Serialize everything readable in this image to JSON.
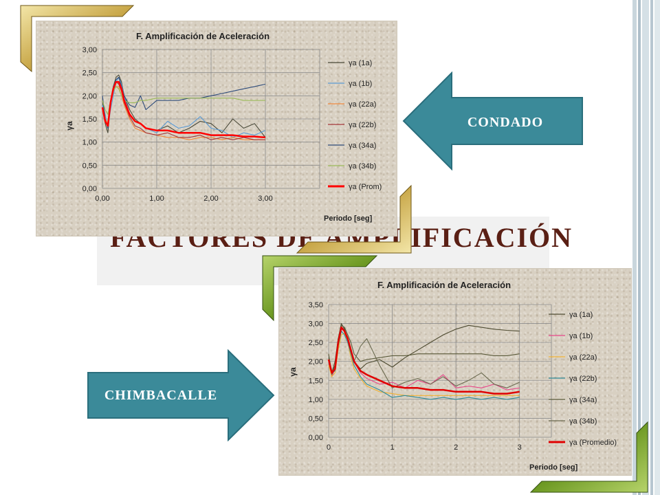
{
  "slide": {
    "title": "FACTORES DE AMPLIFICACIÓN"
  },
  "arrows": {
    "top_label": "CONDADO",
    "bottom_label": "CHIMBACALLE"
  },
  "charts": [
    {
      "title": "F. Amplificación de Aceleración",
      "ylabel": "γa",
      "xlabel": "Periodo [seg]",
      "xticks": [
        "0,00",
        "1,00",
        "2,00",
        "3,00"
      ],
      "yticks": [
        "0,00",
        "0,50",
        "1,00",
        "1,50",
        "2,00",
        "2,50",
        "3,00"
      ],
      "legend": [
        "γa  (1a)",
        "γa (1b)",
        "γa (22a)",
        "γa (22b)",
        "γa (34a)",
        "γa (34b)",
        "γa (Prom)"
      ]
    },
    {
      "title": "F.  Amplificación de Aceleración",
      "ylabel": "γa",
      "xlabel": "Periodo [seg]",
      "xticks": [
        "0",
        "1",
        "2",
        "3"
      ],
      "yticks": [
        "0,00",
        "0,50",
        "1,00",
        "1,50",
        "2,00",
        "2,50",
        "3,00",
        "3,50"
      ],
      "legend": [
        "γa (1a)",
        "γa (1b)",
        "γa (22a)",
        "γa (22b)",
        "γa (34a)",
        "γa (34b)",
        "γa (Promedio)"
      ]
    }
  ],
  "chart_data": [
    {
      "type": "line",
      "title": "F. Amplificación de Aceleración",
      "xlabel": "Periodo [seg]",
      "ylabel": "γa",
      "xlim": [
        0,
        4
      ],
      "ylim": [
        0,
        3
      ],
      "grid": true,
      "legend_position": "right",
      "series": [
        {
          "name": "γa  (1a)",
          "color": "#4a4a3a",
          "x": [
            0,
            0.05,
            0.1,
            0.15,
            0.2,
            0.25,
            0.3,
            0.35,
            0.4,
            0.5,
            0.6,
            0.7,
            0.8,
            1.0,
            1.2,
            1.4,
            1.6,
            1.8,
            2.0,
            2.2,
            2.4,
            2.6,
            2.8,
            3.0
          ],
          "y": [
            1.9,
            1.4,
            1.2,
            1.8,
            2.2,
            2.4,
            2.45,
            2.3,
            2.0,
            1.7,
            1.5,
            1.4,
            1.3,
            1.25,
            1.35,
            1.2,
            1.3,
            1.45,
            1.4,
            1.2,
            1.5,
            1.3,
            1.4,
            1.1
          ]
        },
        {
          "name": "γa (1b)",
          "color": "#5b9bd5",
          "x": [
            0,
            0.05,
            0.1,
            0.15,
            0.2,
            0.25,
            0.3,
            0.35,
            0.4,
            0.5,
            0.6,
            0.7,
            0.8,
            1.0,
            1.2,
            1.4,
            1.6,
            1.8,
            2.0,
            2.2,
            2.4,
            2.6,
            2.8,
            3.0
          ],
          "y": [
            1.8,
            1.6,
            1.3,
            1.7,
            2.0,
            2.3,
            2.4,
            2.25,
            2.0,
            1.6,
            1.45,
            1.4,
            1.3,
            1.2,
            1.45,
            1.3,
            1.35,
            1.55,
            1.3,
            1.25,
            1.1,
            1.2,
            1.15,
            1.25
          ]
        },
        {
          "name": "γa (22a)",
          "color": "#f0883c",
          "x": [
            0,
            0.05,
            0.1,
            0.15,
            0.2,
            0.25,
            0.3,
            0.35,
            0.4,
            0.5,
            0.6,
            0.7,
            0.8,
            1.0,
            1.2,
            1.4,
            1.6,
            1.8,
            2.0,
            2.2,
            2.4,
            2.6,
            2.8,
            3.0
          ],
          "y": [
            1.7,
            1.5,
            1.4,
            1.9,
            2.1,
            2.2,
            2.2,
            2.0,
            1.8,
            1.5,
            1.3,
            1.25,
            1.2,
            1.15,
            1.1,
            1.1,
            1.05,
            1.1,
            1.1,
            1.05,
            1.1,
            1.05,
            1.05,
            1.05
          ]
        },
        {
          "name": "γa (22b)",
          "color": "#a4373a",
          "x": [
            0,
            0.05,
            0.1,
            0.15,
            0.2,
            0.25,
            0.3,
            0.35,
            0.4,
            0.5,
            0.6,
            0.7,
            0.8,
            1.0,
            1.2,
            1.4,
            1.6,
            1.8,
            2.0,
            2.2,
            2.4,
            2.6,
            2.8,
            3.0
          ],
          "y": [
            1.75,
            1.45,
            1.35,
            1.85,
            2.15,
            2.3,
            2.25,
            2.1,
            1.85,
            1.55,
            1.35,
            1.3,
            1.2,
            1.15,
            1.2,
            1.1,
            1.1,
            1.15,
            1.05,
            1.1,
            1.05,
            1.1,
            1.05,
            1.05
          ]
        },
        {
          "name": "γa (34a)",
          "color": "#2c4a7a",
          "x": [
            0,
            0.05,
            0.1,
            0.15,
            0.2,
            0.25,
            0.3,
            0.35,
            0.4,
            0.5,
            0.6,
            0.7,
            0.8,
            1.0,
            1.2,
            1.4,
            1.6,
            1.8,
            2.0,
            2.2,
            2.4,
            2.6,
            2.8,
            3.0
          ],
          "y": [
            2.0,
            1.5,
            1.3,
            1.9,
            2.2,
            2.35,
            2.4,
            2.2,
            2.0,
            1.8,
            1.75,
            2.0,
            1.7,
            1.9,
            1.9,
            1.9,
            1.95,
            1.95,
            2.0,
            2.05,
            2.1,
            2.15,
            2.2,
            2.25
          ]
        },
        {
          "name": "γa (34b)",
          "color": "#9bbb59",
          "x": [
            0,
            0.05,
            0.1,
            0.15,
            0.2,
            0.25,
            0.3,
            0.35,
            0.4,
            0.5,
            0.6,
            0.7,
            0.8,
            1.0,
            1.2,
            1.4,
            1.6,
            1.8,
            2.0,
            2.2,
            2.4,
            2.6,
            2.8,
            3.0
          ],
          "y": [
            1.9,
            1.7,
            1.6,
            1.9,
            2.1,
            2.2,
            2.15,
            2.0,
            1.9,
            1.85,
            1.85,
            1.9,
            1.9,
            1.95,
            1.95,
            1.95,
            1.95,
            1.95,
            1.95,
            1.95,
            1.95,
            1.9,
            1.9,
            1.9
          ]
        },
        {
          "name": "γa (Prom)",
          "color": "#ff0000",
          "width": 2.5,
          "x": [
            0,
            0.05,
            0.1,
            0.15,
            0.2,
            0.25,
            0.3,
            0.35,
            0.4,
            0.5,
            0.6,
            0.7,
            0.8,
            1.0,
            1.2,
            1.4,
            1.6,
            1.8,
            2.0,
            2.2,
            2.4,
            2.6,
            2.8,
            3.0
          ],
          "y": [
            1.75,
            1.45,
            1.35,
            1.85,
            2.15,
            2.3,
            2.3,
            2.15,
            1.9,
            1.6,
            1.45,
            1.4,
            1.3,
            1.25,
            1.25,
            1.2,
            1.2,
            1.2,
            1.15,
            1.15,
            1.15,
            1.12,
            1.12,
            1.1
          ]
        }
      ]
    },
    {
      "type": "line",
      "title": "F.  Amplificación de Aceleración",
      "xlabel": "Periodo [seg]",
      "ylabel": "γa",
      "xlim": [
        0,
        3.5
      ],
      "ylim": [
        0,
        3.5
      ],
      "grid": true,
      "legend_position": "right",
      "series": [
        {
          "name": "γa (1a)",
          "color": "#4d4a30",
          "x": [
            0,
            0.05,
            0.1,
            0.15,
            0.2,
            0.25,
            0.3,
            0.35,
            0.4,
            0.5,
            0.6,
            0.8,
            1.0,
            1.2,
            1.4,
            1.6,
            1.8,
            2.0,
            2.2,
            2.4,
            2.6,
            2.8,
            3.0
          ],
          "y": [
            2.1,
            1.7,
            1.9,
            2.6,
            3.0,
            2.85,
            2.6,
            2.3,
            2.0,
            1.8,
            1.95,
            2.05,
            1.85,
            2.1,
            2.3,
            2.5,
            2.7,
            2.85,
            2.95,
            2.9,
            2.85,
            2.82,
            2.8
          ]
        },
        {
          "name": "γa (1b)",
          "color": "#e8478a",
          "x": [
            0,
            0.05,
            0.1,
            0.15,
            0.2,
            0.25,
            0.3,
            0.35,
            0.4,
            0.5,
            0.6,
            0.8,
            1.0,
            1.2,
            1.4,
            1.6,
            1.8,
            2.0,
            2.2,
            2.4,
            2.6,
            2.8,
            3.0
          ],
          "y": [
            2.0,
            1.6,
            1.8,
            2.5,
            2.85,
            2.8,
            2.6,
            2.3,
            2.0,
            1.7,
            1.55,
            1.4,
            1.45,
            1.3,
            1.5,
            1.4,
            1.65,
            1.3,
            1.35,
            1.3,
            1.4,
            1.25,
            1.3
          ]
        },
        {
          "name": "γa (22a)",
          "color": "#f0b030",
          "x": [
            0,
            0.05,
            0.1,
            0.15,
            0.2,
            0.25,
            0.3,
            0.35,
            0.4,
            0.5,
            0.6,
            0.8,
            1.0,
            1.2,
            1.4,
            1.6,
            1.8,
            2.0,
            2.2,
            2.4,
            2.6,
            2.8,
            3.0
          ],
          "y": [
            1.9,
            1.6,
            1.7,
            2.3,
            2.7,
            2.75,
            2.5,
            2.1,
            1.8,
            1.55,
            1.35,
            1.2,
            1.15,
            1.1,
            1.1,
            1.1,
            1.1,
            1.1,
            1.1,
            1.1,
            1.1,
            1.1,
            1.1
          ]
        },
        {
          "name": "γa (22b)",
          "color": "#2e8b9a",
          "x": [
            0,
            0.05,
            0.1,
            0.15,
            0.2,
            0.25,
            0.3,
            0.35,
            0.4,
            0.5,
            0.6,
            0.8,
            1.0,
            1.2,
            1.4,
            1.6,
            1.8,
            2.0,
            2.2,
            2.4,
            2.6,
            2.8,
            3.0
          ],
          "y": [
            2.0,
            1.7,
            1.75,
            2.4,
            2.8,
            2.7,
            2.5,
            2.2,
            1.9,
            1.6,
            1.4,
            1.25,
            1.05,
            1.1,
            1.05,
            1.0,
            1.05,
            1.0,
            1.05,
            1.0,
            1.05,
            1.0,
            1.05
          ]
        },
        {
          "name": "γa (34a)",
          "color": "#5a5a3a",
          "x": [
            0,
            0.05,
            0.1,
            0.15,
            0.2,
            0.25,
            0.3,
            0.35,
            0.4,
            0.5,
            0.6,
            0.8,
            1.0,
            1.2,
            1.4,
            1.6,
            1.8,
            2.0,
            2.2,
            2.4,
            2.6,
            2.8,
            3.0
          ],
          "y": [
            2.2,
            1.7,
            2.0,
            2.6,
            2.95,
            2.9,
            2.7,
            2.5,
            2.2,
            2.0,
            2.05,
            2.1,
            2.15,
            2.15,
            2.2,
            2.2,
            2.2,
            2.2,
            2.2,
            2.2,
            2.15,
            2.15,
            2.2
          ]
        },
        {
          "name": "γa (34b)",
          "color": "#6b6a50",
          "x": [
            0,
            0.05,
            0.1,
            0.15,
            0.2,
            0.25,
            0.3,
            0.35,
            0.4,
            0.5,
            0.6,
            0.8,
            1.0,
            1.2,
            1.4,
            1.6,
            1.8,
            2.0,
            2.2,
            2.4,
            2.6,
            2.8,
            3.0
          ],
          "y": [
            2.1,
            1.65,
            1.8,
            2.5,
            2.9,
            2.8,
            2.6,
            2.3,
            2.0,
            2.4,
            2.6,
            1.9,
            1.3,
            1.45,
            1.55,
            1.4,
            1.6,
            1.35,
            1.5,
            1.7,
            1.4,
            1.3,
            1.45
          ]
        },
        {
          "name": "γa (Promedio)",
          "color": "#e00000",
          "width": 2.5,
          "x": [
            0,
            0.05,
            0.1,
            0.15,
            0.2,
            0.25,
            0.3,
            0.35,
            0.4,
            0.5,
            0.6,
            0.8,
            1.0,
            1.2,
            1.4,
            1.6,
            1.8,
            2.0,
            2.2,
            2.4,
            2.6,
            2.8,
            3.0
          ],
          "y": [
            2.05,
            1.7,
            1.8,
            2.5,
            2.9,
            2.8,
            2.6,
            2.3,
            2.0,
            1.75,
            1.65,
            1.5,
            1.35,
            1.3,
            1.3,
            1.25,
            1.25,
            1.2,
            1.2,
            1.2,
            1.15,
            1.15,
            1.2
          ]
        }
      ]
    }
  ]
}
